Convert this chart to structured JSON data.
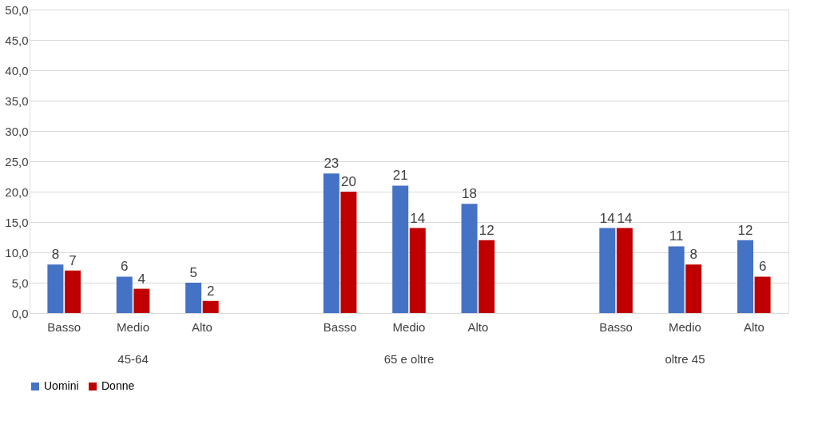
{
  "chart_data": {
    "type": "bar",
    "categories": [
      "Basso",
      "Medio",
      "Alto",
      null,
      "Basso",
      "Medio",
      "Alto",
      null,
      "Basso",
      "Medio",
      "Alto"
    ],
    "series": [
      {
        "name": "Uomini",
        "color": "#4472c4",
        "values": [
          8,
          6,
          5,
          null,
          23,
          21,
          18,
          null,
          14,
          11,
          12
        ]
      },
      {
        "name": "Donne",
        "color": "#c00000",
        "values": [
          7,
          4,
          2,
          null,
          20,
          14,
          12,
          null,
          14,
          8,
          6
        ]
      }
    ],
    "annotations": [
      "45-64",
      "65 e oltre",
      "oltre 45"
    ],
    "ylim": [
      0,
      50
    ],
    "yticks": [
      {
        "value": 0,
        "label": "0,0"
      },
      {
        "value": 5,
        "label": "5,0"
      },
      {
        "value": 10,
        "label": "10,0"
      },
      {
        "value": 15,
        "label": "15,0"
      },
      {
        "value": 20,
        "label": "20,0"
      },
      {
        "value": 25,
        "label": "25,0"
      },
      {
        "value": 30,
        "label": "30,0"
      },
      {
        "value": 35,
        "label": "35,0"
      },
      {
        "value": 40,
        "label": "40,0"
      },
      {
        "value": 45,
        "label": "45,0"
      },
      {
        "value": 50,
        "label": "50,0"
      }
    ],
    "grid": "y",
    "legend": "bottom",
    "data_labels": true
  }
}
